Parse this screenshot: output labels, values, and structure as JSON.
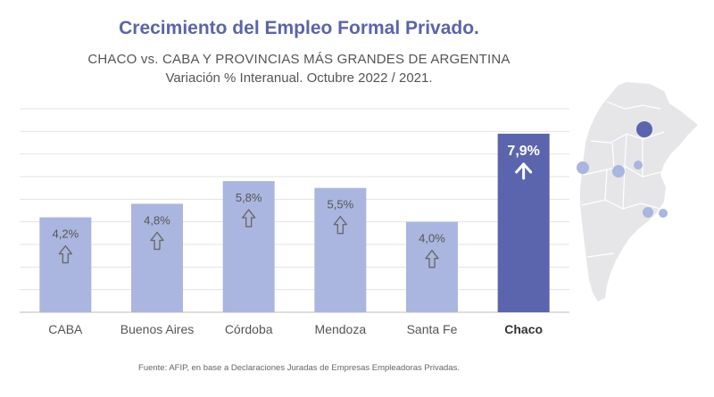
{
  "title": "Crecimiento del Empleo Formal Privado.",
  "subtitle": "CHACO vs. CABA Y PROVINCIAS MÁS GRANDES DE ARGENTINA",
  "subtitle2": "Variación % Interanual. Octubre 2022 / 2021.",
  "source": "Fuente: AFIP, en base a Declaraciones Juradas de Empresas Empleadoras Privadas.",
  "colors": {
    "bar": "#aab6df",
    "highlight": "#5b65ad",
    "title": "#5b65a8",
    "map": "#e6e6e9",
    "marker": "#aab6df"
  },
  "icons": {
    "map": "argentina-map-icon",
    "arrow": "up-arrow-icon"
  },
  "chart_data": {
    "type": "bar",
    "categories": [
      "CABA",
      "Buenos Aires",
      "Córdoba",
      "Mendoza",
      "Santa Fe",
      "Chaco"
    ],
    "values": [
      4.2,
      4.8,
      5.8,
      5.5,
      4.0,
      7.9
    ],
    "labels": [
      "4,2%",
      "4,8%",
      "5,8%",
      "5,5%",
      "4,0%",
      "7,9%"
    ],
    "highlight": "Chaco",
    "ylim": [
      0,
      9
    ],
    "grid": true
  }
}
